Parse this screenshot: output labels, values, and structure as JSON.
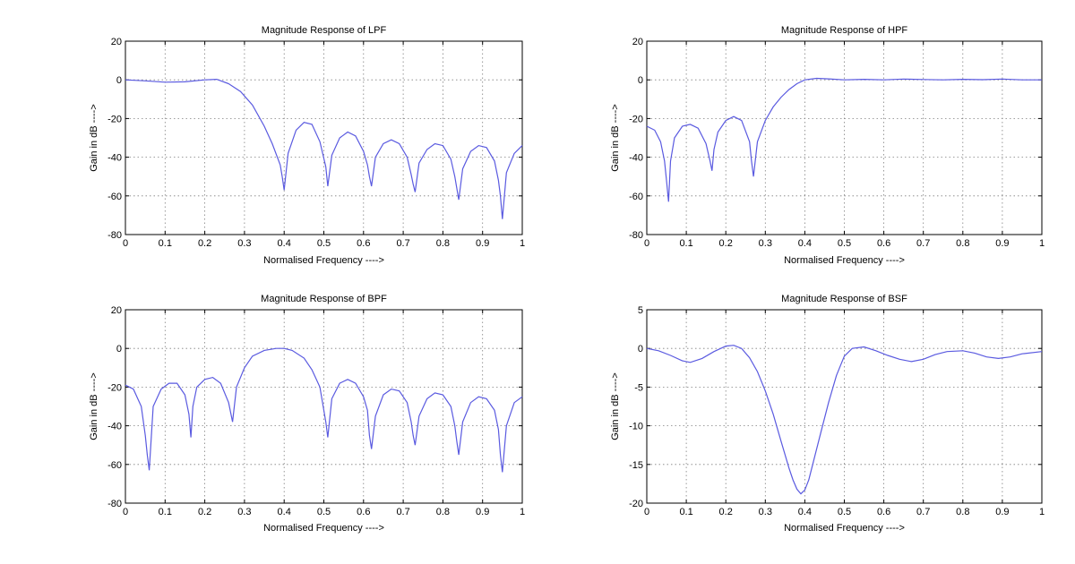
{
  "chart_data": [
    {
      "type": "line",
      "title": "Magnitude Response of LPF",
      "xlabel": "Normalised Frequency ---->",
      "ylabel": "Gain in dB ---->",
      "xlim": [
        0,
        1
      ],
      "ylim": [
        -80,
        20
      ],
      "xticks": [
        0,
        0.1,
        0.2,
        0.3,
        0.4,
        0.5,
        0.6,
        0.7,
        0.8,
        0.9,
        1
      ],
      "yticks": [
        20,
        0,
        -20,
        -40,
        -60,
        -80
      ],
      "grid": true,
      "color": "#5a5ae0",
      "series": [
        {
          "x": [
            0,
            0.05,
            0.1,
            0.15,
            0.2,
            0.23,
            0.26,
            0.29,
            0.32,
            0.35,
            0.37,
            0.39,
            0.395,
            0.4,
            0.41,
            0.43,
            0.45,
            0.47,
            0.49,
            0.505,
            0.51,
            0.52,
            0.54,
            0.56,
            0.58,
            0.6,
            0.61,
            0.615,
            0.62,
            0.63,
            0.65,
            0.67,
            0.69,
            0.71,
            0.72,
            0.725,
            0.73,
            0.74,
            0.76,
            0.78,
            0.8,
            0.82,
            0.83,
            0.835,
            0.84,
            0.85,
            0.87,
            0.89,
            0.91,
            0.93,
            0.94,
            0.945,
            0.95,
            0.96,
            0.98,
            1.0
          ],
          "y": [
            0,
            -0.5,
            -1.2,
            -1.0,
            0,
            0.3,
            -2,
            -6,
            -13,
            -24,
            -33,
            -44,
            -50,
            -57,
            -38,
            -26,
            -22,
            -23,
            -32,
            -45,
            -55,
            -39,
            -30,
            -27,
            -29,
            -37,
            -44,
            -50,
            -55,
            -40,
            -33,
            -31,
            -33,
            -40,
            -49,
            -54,
            -58,
            -43,
            -36,
            -33,
            -34,
            -41,
            -50,
            -56,
            -62,
            -46,
            -37,
            -34,
            -35,
            -42,
            -52,
            -60,
            -72,
            -48,
            -38,
            -34
          ]
        }
      ]
    },
    {
      "type": "line",
      "title": "Magnitude Response of HPF",
      "xlabel": "Normalised Frequency ---->",
      "ylabel": "Gain in dB ---->",
      "xlim": [
        0,
        1
      ],
      "ylim": [
        -80,
        20
      ],
      "xticks": [
        0,
        0.1,
        0.2,
        0.3,
        0.4,
        0.5,
        0.6,
        0.7,
        0.8,
        0.9,
        1
      ],
      "yticks": [
        20,
        0,
        -20,
        -40,
        -60,
        -80
      ],
      "grid": true,
      "color": "#5a5ae0",
      "series": [
        {
          "x": [
            0,
            0.02,
            0.035,
            0.045,
            0.05,
            0.055,
            0.06,
            0.07,
            0.09,
            0.11,
            0.13,
            0.15,
            0.16,
            0.165,
            0.17,
            0.18,
            0.2,
            0.22,
            0.24,
            0.26,
            0.265,
            0.27,
            0.28,
            0.3,
            0.32,
            0.34,
            0.36,
            0.38,
            0.4,
            0.43,
            0.46,
            0.5,
            0.55,
            0.6,
            0.65,
            0.7,
            0.75,
            0.8,
            0.85,
            0.9,
            0.95,
            1.0
          ],
          "y": [
            -24,
            -26,
            -32,
            -42,
            -52,
            -63,
            -42,
            -30,
            -24,
            -23,
            -25,
            -33,
            -42,
            -47,
            -36,
            -27,
            -21,
            -19,
            -21,
            -32,
            -42,
            -50,
            -32,
            -21,
            -14,
            -9,
            -5,
            -2,
            0,
            0.8,
            0.5,
            0,
            0.3,
            0,
            0.4,
            0.2,
            0,
            0.3,
            0.1,
            0.4,
            0,
            0
          ]
        }
      ]
    },
    {
      "type": "line",
      "title": "Magnitude Response of BPF",
      "xlabel": "Normalised Frequency ---->",
      "ylabel": "Gain in dB ---->",
      "xlim": [
        0,
        1
      ],
      "ylim": [
        -80,
        20
      ],
      "xticks": [
        0,
        0.1,
        0.2,
        0.3,
        0.4,
        0.5,
        0.6,
        0.7,
        0.8,
        0.9,
        1
      ],
      "yticks": [
        20,
        0,
        -20,
        -40,
        -60,
        -80
      ],
      "grid": true,
      "color": "#5a5ae0",
      "series": [
        {
          "x": [
            0,
            0.02,
            0.04,
            0.05,
            0.055,
            0.06,
            0.07,
            0.09,
            0.11,
            0.13,
            0.15,
            0.16,
            0.165,
            0.17,
            0.18,
            0.2,
            0.22,
            0.24,
            0.26,
            0.265,
            0.27,
            0.28,
            0.3,
            0.32,
            0.35,
            0.38,
            0.4,
            0.42,
            0.45,
            0.47,
            0.49,
            0.505,
            0.51,
            0.52,
            0.54,
            0.56,
            0.58,
            0.6,
            0.61,
            0.615,
            0.62,
            0.63,
            0.65,
            0.67,
            0.69,
            0.71,
            0.72,
            0.725,
            0.73,
            0.74,
            0.76,
            0.78,
            0.8,
            0.82,
            0.83,
            0.835,
            0.84,
            0.85,
            0.87,
            0.89,
            0.91,
            0.93,
            0.94,
            0.945,
            0.95,
            0.96,
            0.98,
            1.0
          ],
          "y": [
            -19,
            -21,
            -30,
            -45,
            -55,
            -63,
            -30,
            -21,
            -18,
            -18,
            -24,
            -34,
            -46,
            -30,
            -20,
            -16,
            -15,
            -18,
            -28,
            -33,
            -38,
            -20,
            -10,
            -4,
            -1,
            0,
            0,
            -1,
            -5,
            -11,
            -20,
            -38,
            -46,
            -26,
            -18,
            -16,
            -18,
            -25,
            -32,
            -45,
            -52,
            -35,
            -24,
            -21,
            -22,
            -28,
            -38,
            -45,
            -50,
            -35,
            -26,
            -23,
            -24,
            -30,
            -40,
            -48,
            -55,
            -38,
            -28,
            -25,
            -26,
            -32,
            -42,
            -55,
            -64,
            -40,
            -28,
            -25
          ]
        }
      ]
    },
    {
      "type": "line",
      "title": "Magnitude Response of BSF",
      "xlabel": "Normalised Frequency ---->",
      "ylabel": "Gain in dB ---->",
      "xlim": [
        0,
        1
      ],
      "ylim": [
        -20,
        5
      ],
      "xticks": [
        0,
        0.1,
        0.2,
        0.3,
        0.4,
        0.5,
        0.6,
        0.7,
        0.8,
        0.9,
        1
      ],
      "yticks": [
        5,
        0,
        -5,
        -10,
        -15,
        -20
      ],
      "grid": true,
      "color": "#5a5ae0",
      "series": [
        {
          "x": [
            0,
            0.03,
            0.06,
            0.09,
            0.11,
            0.14,
            0.17,
            0.2,
            0.22,
            0.24,
            0.26,
            0.28,
            0.3,
            0.32,
            0.34,
            0.36,
            0.37,
            0.38,
            0.39,
            0.4,
            0.41,
            0.42,
            0.44,
            0.46,
            0.48,
            0.5,
            0.52,
            0.55,
            0.58,
            0.61,
            0.64,
            0.67,
            0.7,
            0.73,
            0.76,
            0.8,
            0.83,
            0.86,
            0.89,
            0.92,
            0.95,
            1.0
          ],
          "y": [
            0,
            -0.3,
            -0.9,
            -1.6,
            -1.8,
            -1.3,
            -0.4,
            0.3,
            0.4,
            0,
            -1.2,
            -3,
            -5.5,
            -8.5,
            -12,
            -15.5,
            -17,
            -18.2,
            -18.8,
            -18.3,
            -17,
            -15,
            -11,
            -7,
            -3.5,
            -1,
            0,
            0.2,
            -0.3,
            -0.9,
            -1.4,
            -1.7,
            -1.4,
            -0.8,
            -0.4,
            -0.3,
            -0.6,
            -1.1,
            -1.3,
            -1.1,
            -0.7,
            -0.4
          ]
        }
      ]
    }
  ]
}
